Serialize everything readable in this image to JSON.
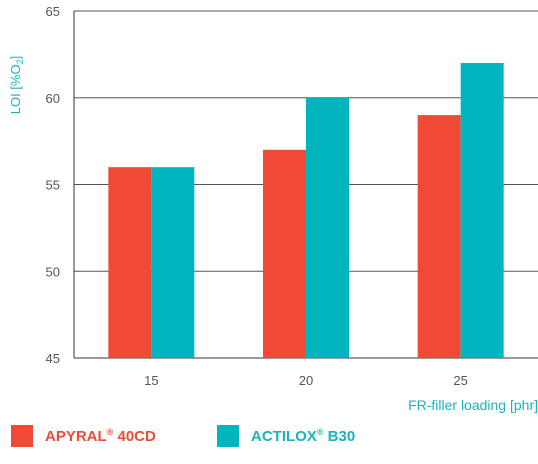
{
  "chart_data": {
    "type": "bar",
    "categories": [
      "15",
      "20",
      "25"
    ],
    "series": [
      {
        "name": "APYRAL® 40CD",
        "values": [
          56,
          57,
          59
        ],
        "color": "#f04a36"
      },
      {
        "name": "ACTILOX® B30",
        "values": [
          56,
          60,
          62
        ],
        "color": "#00b5bd"
      }
    ],
    "xlabel": "FR-filler loading [phr]",
    "ylabel": "LOI [%O₂]",
    "ylim": [
      45,
      65
    ],
    "yticks": [
      45,
      50,
      55,
      60,
      65
    ],
    "grid": true,
    "legend_position": "bottom-left"
  },
  "legend": {
    "items": [
      {
        "name_main": "APYRAL",
        "sup": "®",
        "name_rest": " 40CD",
        "color": "#f04a36",
        "text_color": "#f04a36"
      },
      {
        "name_main": "ACTILOX",
        "sup": "®",
        "name_rest": " B30",
        "color": "#00b5bd",
        "text_color": "#1bb3bd"
      }
    ]
  }
}
